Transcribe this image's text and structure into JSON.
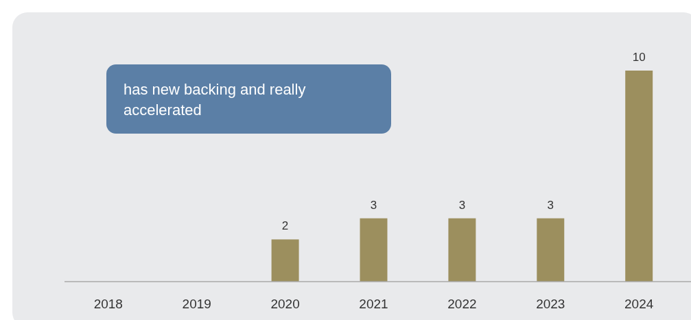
{
  "chart_data": {
    "type": "bar",
    "categories": [
      "2018",
      "2019",
      "2020",
      "2021",
      "2022",
      "2023",
      "2024"
    ],
    "values": [
      0,
      0,
      2,
      3,
      3,
      3,
      10
    ],
    "color": "#9c8f5e",
    "value_labels": [
      null,
      null,
      "2",
      "3",
      "3",
      "3",
      "10"
    ],
    "annotations": [
      "has new backing and really accelerated"
    ]
  }
}
